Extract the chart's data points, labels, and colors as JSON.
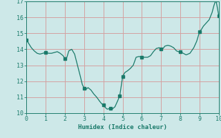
{
  "xlabel": "Humidex (Indice chaleur)",
  "xlim": [
    0,
    10
  ],
  "ylim": [
    10,
    17
  ],
  "yticks": [
    10,
    11,
    12,
    13,
    14,
    15,
    16,
    17
  ],
  "xticks": [
    0,
    1,
    2,
    3,
    4,
    5,
    6,
    7,
    8,
    9,
    10
  ],
  "background_color": "#cde8e8",
  "grid_color_major": "#d4a0a0",
  "line_color": "#1a7a6a",
  "x": [
    0,
    0.12,
    0.25,
    0.4,
    0.55,
    0.7,
    0.85,
    1.0,
    1.15,
    1.3,
    1.45,
    1.6,
    1.75,
    1.9,
    2.0,
    2.1,
    2.2,
    2.35,
    2.5,
    2.65,
    2.8,
    2.9,
    3.0,
    3.1,
    3.2,
    3.35,
    3.5,
    3.65,
    3.8,
    3.9,
    4.0,
    4.1,
    4.2,
    4.35,
    4.45,
    4.6,
    4.75,
    4.85,
    5.0,
    5.12,
    5.25,
    5.4,
    5.55,
    5.7,
    5.85,
    6.0,
    6.15,
    6.3,
    6.45,
    6.6,
    6.75,
    6.9,
    7.0,
    7.1,
    7.2,
    7.35,
    7.5,
    7.65,
    7.8,
    7.9,
    8.0,
    8.15,
    8.3,
    8.5,
    8.7,
    8.85,
    9.0,
    9.1,
    9.2,
    9.35,
    9.5,
    9.65,
    9.75,
    9.85,
    10.0
  ],
  "y": [
    14.6,
    14.35,
    14.1,
    13.9,
    13.75,
    13.7,
    13.75,
    13.8,
    13.75,
    13.75,
    13.8,
    13.85,
    13.75,
    13.6,
    13.4,
    13.5,
    13.9,
    14.0,
    13.7,
    13.0,
    12.3,
    11.8,
    11.55,
    11.5,
    11.6,
    11.45,
    11.2,
    11.0,
    10.75,
    10.6,
    10.5,
    10.35,
    10.25,
    10.3,
    10.25,
    10.4,
    10.8,
    11.1,
    12.3,
    12.55,
    12.65,
    12.8,
    13.0,
    13.5,
    13.55,
    13.5,
    13.5,
    13.5,
    13.6,
    13.85,
    14.05,
    14.1,
    14.0,
    14.05,
    14.2,
    14.25,
    14.2,
    14.1,
    13.9,
    13.85,
    13.85,
    13.75,
    13.65,
    13.75,
    14.1,
    14.5,
    15.1,
    15.25,
    15.45,
    15.65,
    15.85,
    16.3,
    16.75,
    17.1,
    16.1
  ],
  "marker_x": [
    0,
    1.0,
    2.0,
    3.0,
    4.0,
    4.35,
    4.85,
    5.0,
    6.0,
    7.0,
    8.0,
    9.0,
    9.85,
    10.0
  ],
  "marker_y": [
    14.6,
    13.8,
    13.4,
    11.55,
    10.5,
    10.3,
    11.1,
    12.3,
    13.5,
    14.0,
    13.85,
    15.1,
    17.1,
    16.1
  ]
}
